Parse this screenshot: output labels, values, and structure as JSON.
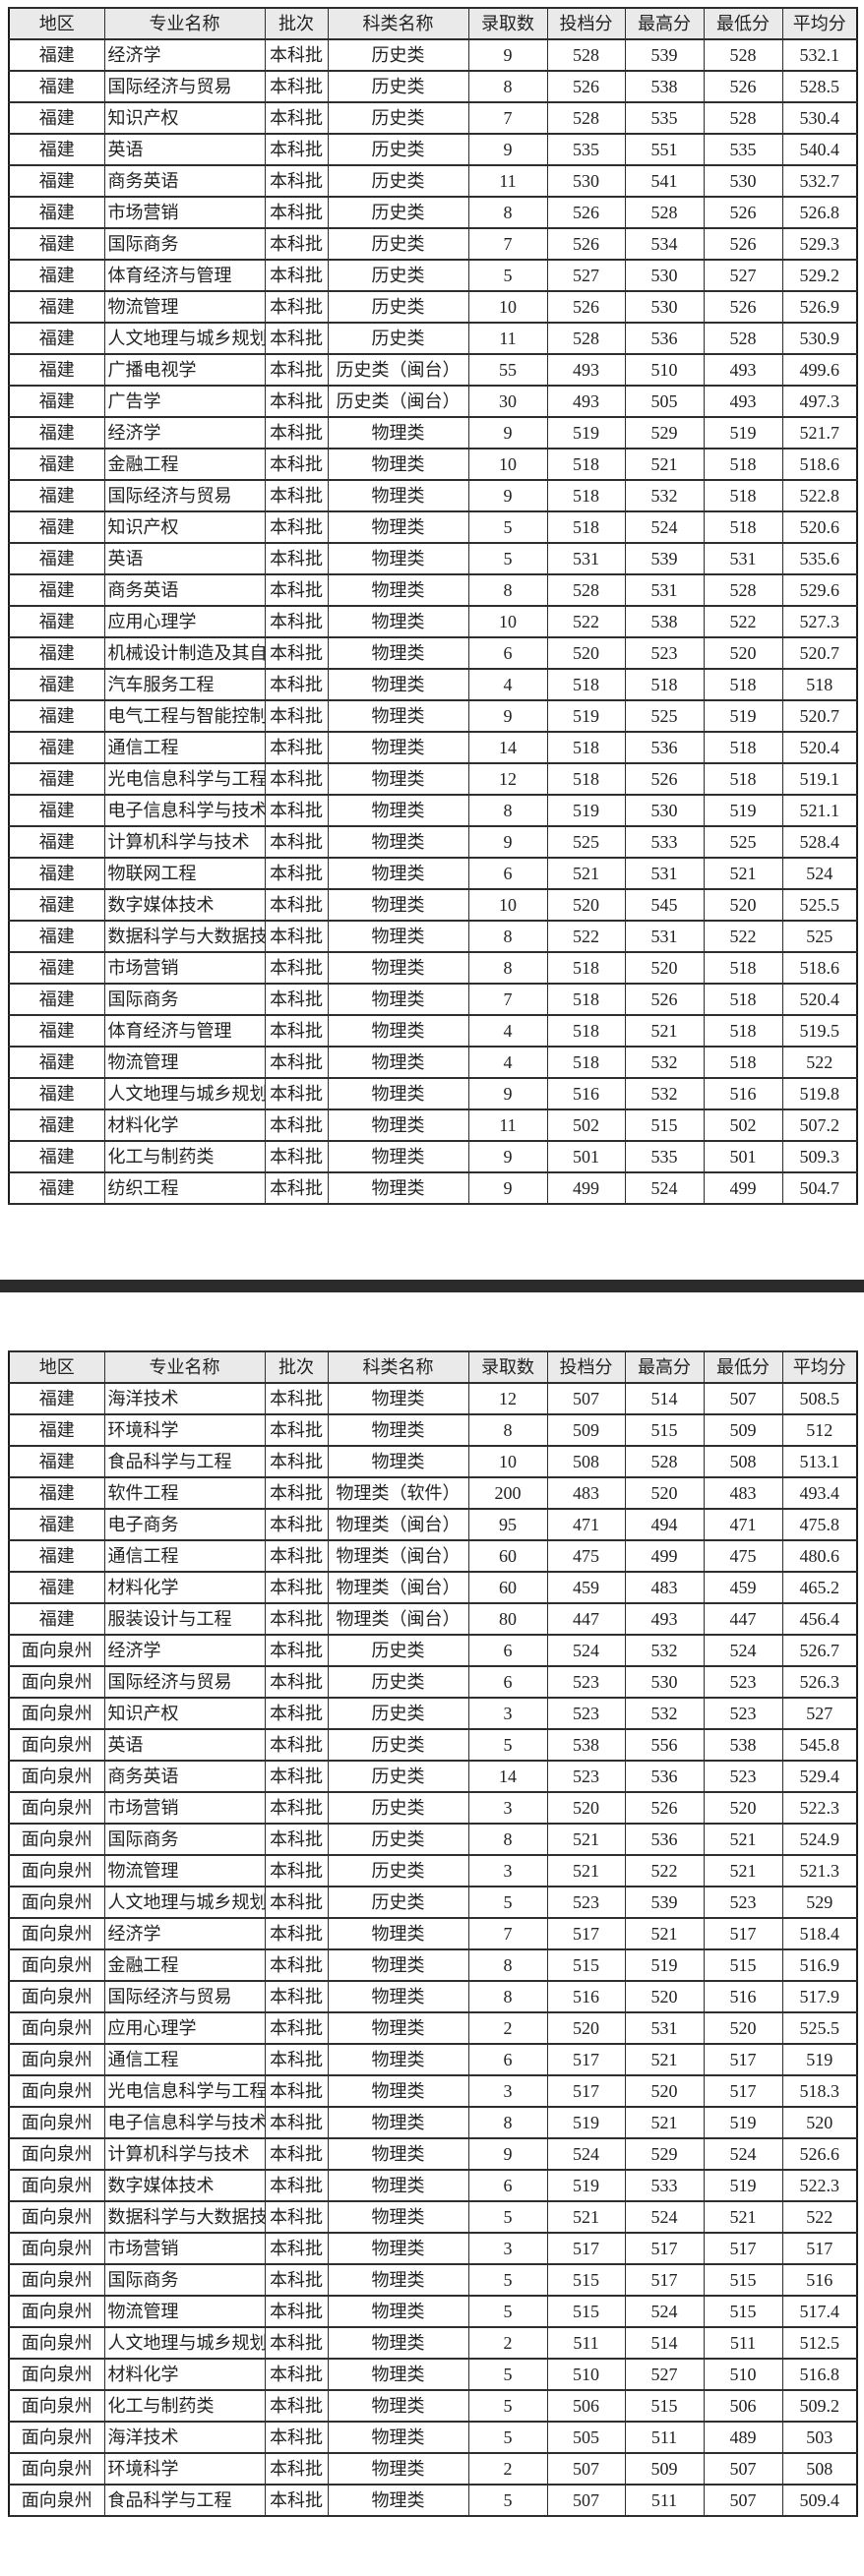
{
  "colors": {
    "page_bg": "#ffffff",
    "header_bg": "#eaeaea",
    "border": "#2e2e2e",
    "text": "#222222",
    "separator_bar": "#2b2b2b"
  },
  "table1": {
    "headers": [
      "地区",
      "专业名称",
      "批次",
      "科类名称",
      "录取数",
      "投档分",
      "最高分",
      "最低分",
      "平均分"
    ],
    "rows": [
      [
        "福建",
        "经济学",
        "本科批",
        "历史类",
        "9",
        "528",
        "539",
        "528",
        "532.1"
      ],
      [
        "福建",
        "国际经济与贸易",
        "本科批",
        "历史类",
        "8",
        "526",
        "538",
        "526",
        "528.5"
      ],
      [
        "福建",
        "知识产权",
        "本科批",
        "历史类",
        "7",
        "528",
        "535",
        "528",
        "530.4"
      ],
      [
        "福建",
        "英语",
        "本科批",
        "历史类",
        "9",
        "535",
        "551",
        "535",
        "540.4"
      ],
      [
        "福建",
        "商务英语",
        "本科批",
        "历史类",
        "11",
        "530",
        "541",
        "530",
        "532.7"
      ],
      [
        "福建",
        "市场营销",
        "本科批",
        "历史类",
        "8",
        "526",
        "528",
        "526",
        "526.8"
      ],
      [
        "福建",
        "国际商务",
        "本科批",
        "历史类",
        "7",
        "526",
        "534",
        "526",
        "529.3"
      ],
      [
        "福建",
        "体育经济与管理",
        "本科批",
        "历史类",
        "5",
        "527",
        "530",
        "527",
        "529.2"
      ],
      [
        "福建",
        "物流管理",
        "本科批",
        "历史类",
        "10",
        "526",
        "530",
        "526",
        "526.9"
      ],
      [
        "福建",
        "人文地理与城乡规划",
        "本科批",
        "历史类",
        "11",
        "528",
        "536",
        "528",
        "530.9"
      ],
      [
        "福建",
        "广播电视学",
        "本科批",
        "历史类（闽台）",
        "55",
        "493",
        "510",
        "493",
        "499.6"
      ],
      [
        "福建",
        "广告学",
        "本科批",
        "历史类（闽台）",
        "30",
        "493",
        "505",
        "493",
        "497.3"
      ],
      [
        "福建",
        "经济学",
        "本科批",
        "物理类",
        "9",
        "519",
        "529",
        "519",
        "521.7"
      ],
      [
        "福建",
        "金融工程",
        "本科批",
        "物理类",
        "10",
        "518",
        "521",
        "518",
        "518.6"
      ],
      [
        "福建",
        "国际经济与贸易",
        "本科批",
        "物理类",
        "9",
        "518",
        "532",
        "518",
        "522.8"
      ],
      [
        "福建",
        "知识产权",
        "本科批",
        "物理类",
        "5",
        "518",
        "524",
        "518",
        "520.6"
      ],
      [
        "福建",
        "英语",
        "本科批",
        "物理类",
        "5",
        "531",
        "539",
        "531",
        "535.6"
      ],
      [
        "福建",
        "商务英语",
        "本科批",
        "物理类",
        "8",
        "528",
        "531",
        "528",
        "529.6"
      ],
      [
        "福建",
        "应用心理学",
        "本科批",
        "物理类",
        "10",
        "522",
        "538",
        "522",
        "527.3"
      ],
      [
        "福建",
        "机械设计制造及其自",
        "本科批",
        "物理类",
        "6",
        "520",
        "523",
        "520",
        "520.7"
      ],
      [
        "福建",
        "汽车服务工程",
        "本科批",
        "物理类",
        "4",
        "518",
        "518",
        "518",
        "518"
      ],
      [
        "福建",
        "电气工程与智能控制",
        "本科批",
        "物理类",
        "9",
        "519",
        "525",
        "519",
        "520.7"
      ],
      [
        "福建",
        "通信工程",
        "本科批",
        "物理类",
        "14",
        "518",
        "536",
        "518",
        "520.4"
      ],
      [
        "福建",
        "光电信息科学与工程",
        "本科批",
        "物理类",
        "12",
        "518",
        "526",
        "518",
        "519.1"
      ],
      [
        "福建",
        "电子信息科学与技术",
        "本科批",
        "物理类",
        "8",
        "519",
        "530",
        "519",
        "521.1"
      ],
      [
        "福建",
        "计算机科学与技术",
        "本科批",
        "物理类",
        "9",
        "525",
        "533",
        "525",
        "528.4"
      ],
      [
        "福建",
        "物联网工程",
        "本科批",
        "物理类",
        "6",
        "521",
        "531",
        "521",
        "524"
      ],
      [
        "福建",
        "数字媒体技术",
        "本科批",
        "物理类",
        "10",
        "520",
        "545",
        "520",
        "525.5"
      ],
      [
        "福建",
        "数据科学与大数据技",
        "本科批",
        "物理类",
        "8",
        "522",
        "531",
        "522",
        "525"
      ],
      [
        "福建",
        "市场营销",
        "本科批",
        "物理类",
        "8",
        "518",
        "520",
        "518",
        "518.6"
      ],
      [
        "福建",
        "国际商务",
        "本科批",
        "物理类",
        "7",
        "518",
        "526",
        "518",
        "520.4"
      ],
      [
        "福建",
        "体育经济与管理",
        "本科批",
        "物理类",
        "4",
        "518",
        "521",
        "518",
        "519.5"
      ],
      [
        "福建",
        "物流管理",
        "本科批",
        "物理类",
        "4",
        "518",
        "532",
        "518",
        "522"
      ],
      [
        "福建",
        "人文地理与城乡规划",
        "本科批",
        "物理类",
        "9",
        "516",
        "532",
        "516",
        "519.8"
      ],
      [
        "福建",
        "材料化学",
        "本科批",
        "物理类",
        "11",
        "502",
        "515",
        "502",
        "507.2"
      ],
      [
        "福建",
        "化工与制药类",
        "本科批",
        "物理类",
        "9",
        "501",
        "535",
        "501",
        "509.3"
      ],
      [
        "福建",
        "纺织工程",
        "本科批",
        "物理类",
        "9",
        "499",
        "524",
        "499",
        "504.7"
      ]
    ]
  },
  "table2": {
    "headers": [
      "地区",
      "专业名称",
      "批次",
      "科类名称",
      "录取数",
      "投档分",
      "最高分",
      "最低分",
      "平均分"
    ],
    "rows": [
      [
        "福建",
        "海洋技术",
        "本科批",
        "物理类",
        "12",
        "507",
        "514",
        "507",
        "508.5"
      ],
      [
        "福建",
        "环境科学",
        "本科批",
        "物理类",
        "8",
        "509",
        "515",
        "509",
        "512"
      ],
      [
        "福建",
        "食品科学与工程",
        "本科批",
        "物理类",
        "10",
        "508",
        "528",
        "508",
        "513.1"
      ],
      [
        "福建",
        "软件工程",
        "本科批",
        "物理类（软件）",
        "200",
        "483",
        "520",
        "483",
        "493.4"
      ],
      [
        "福建",
        "电子商务",
        "本科批",
        "物理类（闽台）",
        "95",
        "471",
        "494",
        "471",
        "475.8"
      ],
      [
        "福建",
        "通信工程",
        "本科批",
        "物理类（闽台）",
        "60",
        "475",
        "499",
        "475",
        "480.6"
      ],
      [
        "福建",
        "材料化学",
        "本科批",
        "物理类（闽台）",
        "60",
        "459",
        "483",
        "459",
        "465.2"
      ],
      [
        "福建",
        "服装设计与工程",
        "本科批",
        "物理类（闽台）",
        "80",
        "447",
        "493",
        "447",
        "456.4"
      ],
      [
        "面向泉州",
        "经济学",
        "本科批",
        "历史类",
        "6",
        "524",
        "532",
        "524",
        "526.7"
      ],
      [
        "面向泉州",
        "国际经济与贸易",
        "本科批",
        "历史类",
        "6",
        "523",
        "530",
        "523",
        "526.3"
      ],
      [
        "面向泉州",
        "知识产权",
        "本科批",
        "历史类",
        "3",
        "523",
        "532",
        "523",
        "527"
      ],
      [
        "面向泉州",
        "英语",
        "本科批",
        "历史类",
        "5",
        "538",
        "556",
        "538",
        "545.8"
      ],
      [
        "面向泉州",
        "商务英语",
        "本科批",
        "历史类",
        "14",
        "523",
        "536",
        "523",
        "529.4"
      ],
      [
        "面向泉州",
        "市场营销",
        "本科批",
        "历史类",
        "3",
        "520",
        "526",
        "520",
        "522.3"
      ],
      [
        "面向泉州",
        "国际商务",
        "本科批",
        "历史类",
        "8",
        "521",
        "536",
        "521",
        "524.9"
      ],
      [
        "面向泉州",
        "物流管理",
        "本科批",
        "历史类",
        "3",
        "521",
        "522",
        "521",
        "521.3"
      ],
      [
        "面向泉州",
        "人文地理与城乡规划",
        "本科批",
        "历史类",
        "5",
        "523",
        "539",
        "523",
        "529"
      ],
      [
        "面向泉州",
        "经济学",
        "本科批",
        "物理类",
        "7",
        "517",
        "521",
        "517",
        "518.4"
      ],
      [
        "面向泉州",
        "金融工程",
        "本科批",
        "物理类",
        "8",
        "515",
        "519",
        "515",
        "516.9"
      ],
      [
        "面向泉州",
        "国际经济与贸易",
        "本科批",
        "物理类",
        "8",
        "516",
        "520",
        "516",
        "517.9"
      ],
      [
        "面向泉州",
        "应用心理学",
        "本科批",
        "物理类",
        "2",
        "520",
        "531",
        "520",
        "525.5"
      ],
      [
        "面向泉州",
        "通信工程",
        "本科批",
        "物理类",
        "6",
        "517",
        "521",
        "517",
        "519"
      ],
      [
        "面向泉州",
        "光电信息科学与工程",
        "本科批",
        "物理类",
        "3",
        "517",
        "520",
        "517",
        "518.3"
      ],
      [
        "面向泉州",
        "电子信息科学与技术",
        "本科批",
        "物理类",
        "8",
        "519",
        "521",
        "519",
        "520"
      ],
      [
        "面向泉州",
        "计算机科学与技术",
        "本科批",
        "物理类",
        "9",
        "524",
        "529",
        "524",
        "526.6"
      ],
      [
        "面向泉州",
        "数字媒体技术",
        "本科批",
        "物理类",
        "6",
        "519",
        "533",
        "519",
        "522.3"
      ],
      [
        "面向泉州",
        "数据科学与大数据技",
        "本科批",
        "物理类",
        "5",
        "521",
        "524",
        "521",
        "522"
      ],
      [
        "面向泉州",
        "市场营销",
        "本科批",
        "物理类",
        "3",
        "517",
        "517",
        "517",
        "517"
      ],
      [
        "面向泉州",
        "国际商务",
        "本科批",
        "物理类",
        "5",
        "515",
        "517",
        "515",
        "516"
      ],
      [
        "面向泉州",
        "物流管理",
        "本科批",
        "物理类",
        "5",
        "515",
        "524",
        "515",
        "517.4"
      ],
      [
        "面向泉州",
        "人文地理与城乡规划",
        "本科批",
        "物理类",
        "2",
        "511",
        "514",
        "511",
        "512.5"
      ],
      [
        "面向泉州",
        "材料化学",
        "本科批",
        "物理类",
        "5",
        "510",
        "527",
        "510",
        "516.8"
      ],
      [
        "面向泉州",
        "化工与制药类",
        "本科批",
        "物理类",
        "5",
        "506",
        "515",
        "506",
        "509.2"
      ],
      [
        "面向泉州",
        "海洋技术",
        "本科批",
        "物理类",
        "5",
        "505",
        "511",
        "489",
        "503"
      ],
      [
        "面向泉州",
        "环境科学",
        "本科批",
        "物理类",
        "2",
        "507",
        "509",
        "507",
        "508"
      ],
      [
        "面向泉州",
        "食品科学与工程",
        "本科批",
        "物理类",
        "5",
        "507",
        "511",
        "507",
        "509.4"
      ]
    ]
  }
}
